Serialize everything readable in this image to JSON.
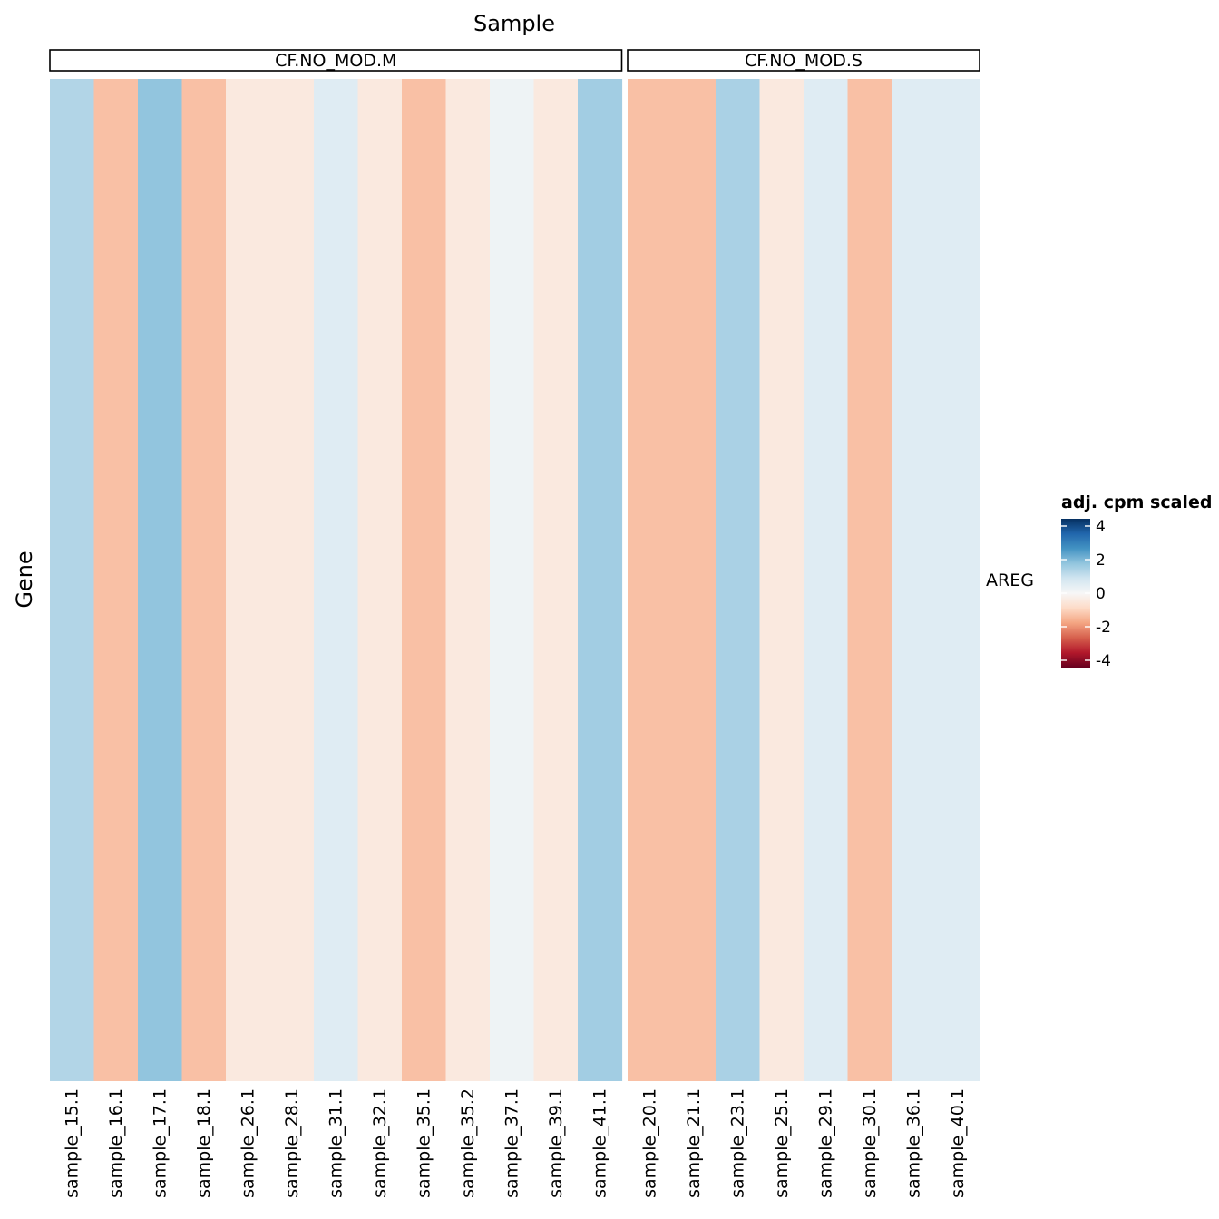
{
  "chart_data": {
    "type": "heatmap",
    "title": "Sample",
    "ylabel": "Gene",
    "genes": [
      "AREG"
    ],
    "facets": [
      {
        "label": "CF.NO_MOD.M",
        "samples": [
          "sample_15.1",
          "sample_16.1",
          "sample_17.1",
          "sample_18.1",
          "sample_26.1",
          "sample_28.1",
          "sample_31.1",
          "sample_32.1",
          "sample_35.1",
          "sample_35.2",
          "sample_37.1",
          "sample_39.1",
          "sample_41.1"
        ],
        "values": [
          1.2,
          -1.2,
          1.6,
          -1.2,
          -0.4,
          -0.4,
          0.5,
          -0.4,
          -1.2,
          -0.4,
          0.2,
          -0.4,
          1.4
        ]
      },
      {
        "label": "CF.NO_MOD.S",
        "samples": [
          "sample_20.1",
          "sample_21.1",
          "sample_23.1",
          "sample_25.1",
          "sample_29.1",
          "sample_30.1",
          "sample_36.1",
          "sample_40.1"
        ],
        "values": [
          -1.2,
          -1.2,
          1.3,
          -0.4,
          0.5,
          -1.2,
          0.5,
          0.5
        ]
      }
    ],
    "legend": {
      "title": "adj. cpm scaled",
      "ticks": [
        "4",
        "2",
        "0",
        "-2",
        "-4"
      ],
      "range": [
        -4,
        4
      ]
    },
    "colors": {
      "scale": [
        "#67001f",
        "#b2182b",
        "#d6604d",
        "#f4a582",
        "#fddbc7",
        "#f7f7f7",
        "#d1e5f0",
        "#92c5de",
        "#4393c3",
        "#2166ac",
        "#053061"
      ],
      "strip_border": "#000000"
    }
  }
}
